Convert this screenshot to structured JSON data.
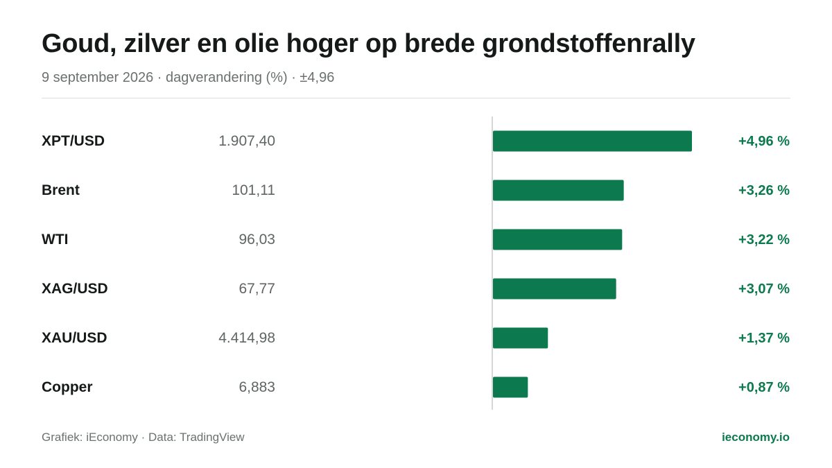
{
  "header": {
    "title": "Goud, zilver en olie hoger op brede grondstoffenrally",
    "subtitle": "9 september 2026 · dagverandering (%) · ±4,96"
  },
  "footer": {
    "source": "Grafiek: iEconomy · Data: TradingView",
    "brand": "ieconomy.io"
  },
  "colors": {
    "bar": "#0c7a4e",
    "axis": "#d4d7d5"
  },
  "chart_data": {
    "type": "bar",
    "orientation": "horizontal",
    "xlim": [
      -4.96,
      4.96
    ],
    "categories": [
      "XPT/USD",
      "Brent",
      "WTI",
      "XAG/USD",
      "XAU/USD",
      "Copper"
    ],
    "prices": [
      "1.907,40",
      "101,11",
      "96,03",
      "67,77",
      "4.414,98",
      "6,883"
    ],
    "values": [
      4.96,
      3.26,
      3.22,
      3.07,
      1.37,
      0.87
    ],
    "value_labels": [
      "+4,96 %",
      "+3,26 %",
      "+3,22 %",
      "+3,07 %",
      "+1,37 %",
      "+0,87 %"
    ]
  }
}
